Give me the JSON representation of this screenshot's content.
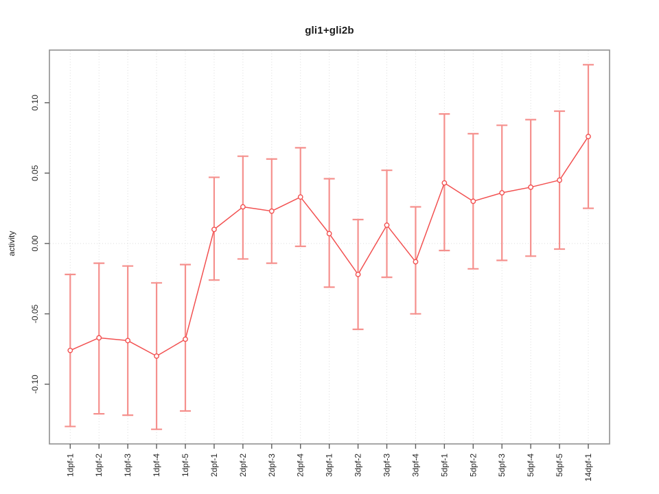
{
  "figure": {
    "title": "gli1+gli2b",
    "ylabel": "activity"
  },
  "chart_data": {
    "type": "line",
    "title": "gli1+gli2b",
    "xlabel": "",
    "ylabel": "activity",
    "legend": "none",
    "grid": {
      "vertical_dotted_per_category": true,
      "horizontal_dotted_at_zero": true
    },
    "categories": [
      "1dpf-1",
      "1dpf-2",
      "1dpf-3",
      "1dpf-4",
      "1dpf-5",
      "2dpf-1",
      "2dpf-2",
      "2dpf-3",
      "2dpf-4",
      "3dpf-1",
      "3dpf-2",
      "3dpf-3",
      "3dpf-4",
      "5dpf-1",
      "5dpf-2",
      "5dpf-3",
      "5dpf-4",
      "5dpf-5",
      "14dpf-1"
    ],
    "series": [
      {
        "name": "activity",
        "marker": "open-circle",
        "values": [
          -0.076,
          -0.067,
          -0.069,
          -0.08,
          -0.068,
          0.01,
          0.026,
          0.023,
          0.033,
          0.007,
          -0.022,
          0.013,
          -0.013,
          0.043,
          0.03,
          0.036,
          0.04,
          0.045,
          0.076
        ],
        "lower": [
          -0.13,
          -0.121,
          -0.122,
          -0.132,
          -0.119,
          -0.026,
          -0.011,
          -0.014,
          -0.002,
          -0.031,
          -0.061,
          -0.024,
          -0.05,
          -0.005,
          -0.018,
          -0.012,
          -0.009,
          -0.004,
          0.025
        ],
        "upper": [
          -0.022,
          -0.014,
          -0.016,
          -0.028,
          -0.015,
          0.047,
          0.062,
          0.06,
          0.068,
          0.046,
          0.017,
          0.052,
          0.026,
          0.092,
          0.078,
          0.084,
          0.088,
          0.094,
          0.127
        ]
      }
    ],
    "yticks": [
      -0.1,
      -0.05,
      0,
      0.05,
      0.1
    ],
    "ytick_labels": [
      "-0.10",
      "-0.05",
      "0.00",
      "0.05",
      "0.10"
    ],
    "ylim": [
      -0.1424,
      0.1374
    ],
    "colors": {
      "line": "#f25050",
      "marker": "#f25050",
      "error_bar": "#f5908d",
      "grid": "#dcdcdc",
      "box": "#8f8f8f",
      "tick": "#5c5c5c",
      "text": "#262626",
      "background": "#ffffff"
    }
  }
}
